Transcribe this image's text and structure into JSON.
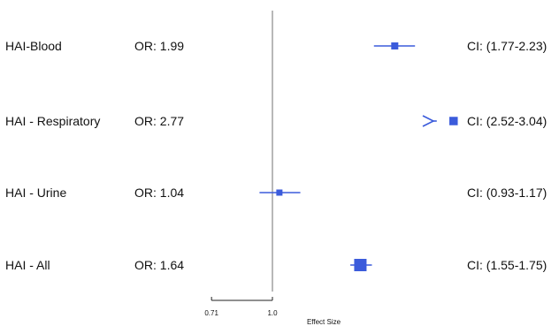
{
  "chart_data": {
    "type": "forest",
    "xlabel": "Effect Size",
    "x_scale": "log",
    "reference_line": 1.0,
    "ticks": [
      {
        "value": 0.71,
        "label": "0.71"
      },
      {
        "value": 1.0,
        "label": "1.0"
      }
    ],
    "colors": {
      "marker": "#3b5bdb",
      "reference_line": "#888888",
      "axis": "#222222"
    },
    "rows": [
      {
        "label": "HAI-Blood",
        "or_text": "OR: 1.99",
        "ci_text": "CI: (1.77-2.23)",
        "or": 1.99,
        "ci_low": 1.77,
        "ci_high": 2.23,
        "marker_weight": 0.8,
        "clipped_right": false
      },
      {
        "label": "HAI - Respiratory",
        "or_text": "OR: 2.77",
        "ci_text": "CI: (2.52-3.04)",
        "or": 2.77,
        "ci_low": 2.52,
        "ci_high": 3.04,
        "marker_weight": 0.95,
        "clipped_right": true
      },
      {
        "label": "HAI - Urine",
        "or_text": "OR: 1.04",
        "ci_text": "CI: (0.93-1.17)",
        "or": 1.04,
        "ci_low": 0.93,
        "ci_high": 1.17,
        "marker_weight": 0.7,
        "clipped_right": false
      },
      {
        "label": "HAI - All",
        "or_text": "OR: 1.64",
        "ci_text": "CI: (1.55-1.75)",
        "or": 1.64,
        "ci_low": 1.55,
        "ci_high": 1.75,
        "marker_weight": 1.4,
        "clipped_right": false
      }
    ]
  }
}
